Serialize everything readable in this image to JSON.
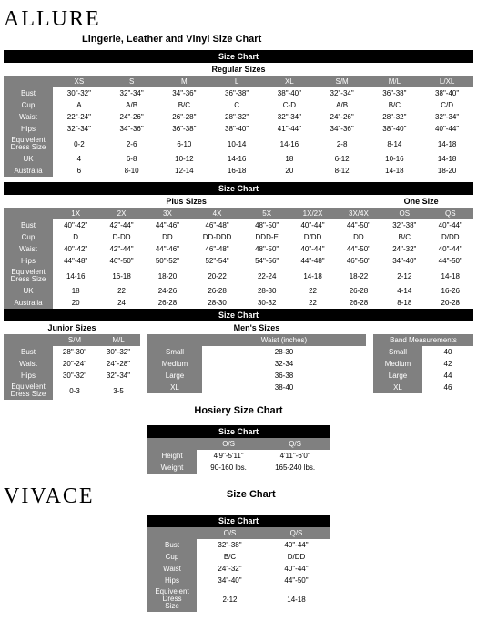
{
  "allure_brand": "ALLURE",
  "allure_title": "Lingerie, Leather and Vinyl Size Chart",
  "sc": "Size Chart",
  "reg_title": "Regular Sizes",
  "reg": {
    "cols": [
      "XS",
      "S",
      "M",
      "L",
      "XL",
      "S/M",
      "M/L",
      "L/XL"
    ],
    "rows": [
      {
        "l": "Bust",
        "v": [
          "30\"-32\"",
          "32\"-34\"",
          "34\"-36\"",
          "36\"-38\"",
          "38\"-40\"",
          "32\"-34\"",
          "36\"-38\"",
          "38\"-40\""
        ]
      },
      {
        "l": "Cup",
        "v": [
          "A",
          "A/B",
          "B/C",
          "C",
          "C-D",
          "A/B",
          "B/C",
          "C/D"
        ]
      },
      {
        "l": "Waist",
        "v": [
          "22\"-24\"",
          "24\"-26\"",
          "26\"-28\"",
          "28\"-32\"",
          "32\"-34\"",
          "24\"-26\"",
          "28\"-32\"",
          "32\"-34\""
        ]
      },
      {
        "l": "Hips",
        "v": [
          "32\"-34\"",
          "34\"-36\"",
          "36\"-38\"",
          "38\"-40\"",
          "41\"-44\"",
          "34\"-36\"",
          "38\"-40\"",
          "40\"-44\""
        ]
      },
      {
        "l": "Equivelent Dress Size",
        "v": [
          "0-2",
          "2-6",
          "6-10",
          "10-14",
          "14-16",
          "2-8",
          "8-14",
          "14-18"
        ]
      },
      {
        "l": "UK",
        "v": [
          "4",
          "6-8",
          "10-12",
          "14-16",
          "18",
          "6-12",
          "10-16",
          "14-18"
        ]
      },
      {
        "l": "Australia",
        "v": [
          "6",
          "8-10",
          "12-14",
          "16-18",
          "20",
          "8-12",
          "14-18",
          "18-20"
        ]
      }
    ]
  },
  "plus_title": "Plus Sizes",
  "one_title": "One Size",
  "plus": {
    "cols": [
      "1X",
      "2X",
      "3X",
      "4X",
      "5X",
      "1X/2X",
      "3X/4X",
      "OS",
      "QS"
    ],
    "rows": [
      {
        "l": "Bust",
        "v": [
          "40\"-42\"",
          "42\"-44\"",
          "44\"-46\"",
          "46\"-48\"",
          "48\"-50\"",
          "40\"-44\"",
          "44\"-50\"",
          "32\"-38\"",
          "40\"-44\""
        ]
      },
      {
        "l": "Cup",
        "v": [
          "D",
          "D-DD",
          "DD",
          "DD-DDD",
          "DDD-E",
          "D/DD",
          "DD",
          "B/C",
          "D/DD"
        ]
      },
      {
        "l": "Waist",
        "v": [
          "40\"-42\"",
          "42\"-44\"",
          "44\"-46\"",
          "46\"-48\"",
          "48\"-50\"",
          "40\"-44\"",
          "44\"-50\"",
          "24\"-32\"",
          "40\"-44\""
        ]
      },
      {
        "l": "Hips",
        "v": [
          "44\"-48\"",
          "46\"-50\"",
          "50\"-52\"",
          "52\"-54\"",
          "54\"-56\"",
          "44\"-48\"",
          "46\"-50\"",
          "34\"-40\"",
          "44\"-50\""
        ]
      },
      {
        "l": "Equivelent Dress Size",
        "v": [
          "14-16",
          "16-18",
          "18-20",
          "20-22",
          "22-24",
          "14-18",
          "18-22",
          "2-12",
          "14-18"
        ]
      },
      {
        "l": "UK",
        "v": [
          "18",
          "22",
          "24-26",
          "26-28",
          "28-30",
          "22",
          "26-28",
          "4-14",
          "16-26"
        ]
      },
      {
        "l": "Australia",
        "v": [
          "20",
          "24",
          "26-28",
          "28-30",
          "30-32",
          "22",
          "26-28",
          "8-18",
          "20-28"
        ]
      }
    ]
  },
  "jr_title": "Junior Sizes",
  "jr": {
    "cols": [
      "S/M",
      "M/L"
    ],
    "rows": [
      {
        "l": "Bust",
        "v": [
          "28\"-30\"",
          "30\"-32\""
        ]
      },
      {
        "l": "Waist",
        "v": [
          "20\"-24\"",
          "24\"-28\""
        ]
      },
      {
        "l": "Hips",
        "v": [
          "30\"-32\"",
          "32\"-34\""
        ]
      },
      {
        "l": "Equivelent Dress Size",
        "v": [
          "0-3",
          "3-5"
        ]
      }
    ]
  },
  "men_title": "Men's Sizes",
  "men_wh": "Waist (inches)",
  "men": [
    {
      "l": "Small",
      "v": "28-30"
    },
    {
      "l": "Medium",
      "v": "32-34"
    },
    {
      "l": "Large",
      "v": "36-38"
    },
    {
      "l": "XL",
      "v": "38-40"
    }
  ],
  "band_title": "Band Measurements",
  "band": [
    {
      "l": "Small",
      "v": "40"
    },
    {
      "l": "Medium",
      "v": "42"
    },
    {
      "l": "Large",
      "v": "44"
    },
    {
      "l": "XL",
      "v": "46"
    }
  ],
  "hos_title": "Hosiery Size Chart",
  "hos": {
    "cols": [
      "O/S",
      "Q/S"
    ],
    "rows": [
      {
        "l": "Height",
        "v": [
          "4'9\"-5'11\"",
          "4'11\"-6'0\""
        ]
      },
      {
        "l": "Weight",
        "v": [
          "90-160 lbs.",
          "165-240 lbs."
        ]
      }
    ]
  },
  "viv_brand": "VIVACE",
  "viv_title": "Size Chart",
  "viv": {
    "cols": [
      "O/S",
      "Q/S"
    ],
    "rows": [
      {
        "l": "Bust",
        "v": [
          "32\"-38\"",
          "40\"-44\""
        ]
      },
      {
        "l": "Cup",
        "v": [
          "B/C",
          "D/DD"
        ]
      },
      {
        "l": "Waist",
        "v": [
          "24\"-32\"",
          "40\"-44\""
        ]
      },
      {
        "l": "Hips",
        "v": [
          "34\"-40\"",
          "44\"-50\""
        ]
      },
      {
        "l": "Equivelent Dress Size",
        "v": [
          "2-12",
          "14-18"
        ]
      }
    ]
  }
}
